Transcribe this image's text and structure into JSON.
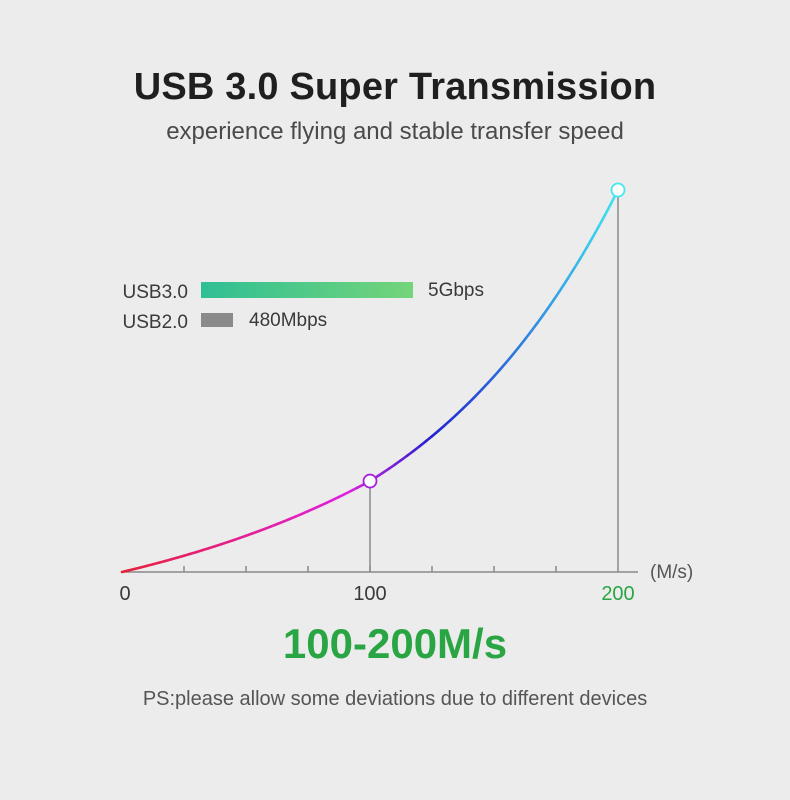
{
  "header": {
    "title": "USB 3.0 Super Transmission",
    "subtitle": "experience flying and stable transfer speed"
  },
  "legend": [
    {
      "label": "USB3.0",
      "value_label": "5Gbps",
      "value": 5000
    },
    {
      "label": "USB2.0",
      "value_label": "480Mbps",
      "value": 480
    }
  ],
  "range_label": "100-200M/s",
  "note": "PS:please allow some deviations due to different devices",
  "colors": {
    "background": "#ececec",
    "axis": "#8a8a8a",
    "usb3_bar_start": "#2fbf95",
    "usb3_bar_end": "#74d47a",
    "usb2_bar": "#8a8a8a",
    "curve_start": "#e8203a",
    "curve_mid1": "#e020e0",
    "curve_mid2": "#2020d0",
    "curve_end": "#40e8f0",
    "accent_green": "#2aa544"
  },
  "chart_data": {
    "type": "line",
    "xlabel": "(M/s)",
    "xlim": [
      0,
      200
    ],
    "x_ticks": [
      {
        "value": 0,
        "label": "0"
      },
      {
        "value": 100,
        "label": "100"
      },
      {
        "value": 200,
        "label": "200"
      }
    ],
    "minor_tick_step": 25,
    "series": [
      {
        "x": [
          0,
          25,
          50,
          75,
          100,
          125,
          150,
          175,
          200
        ],
        "y": [
          0,
          0.12,
          0.26,
          0.45,
          1.0,
          1.55,
          2.3,
          3.2,
          4.2
        ]
      }
    ],
    "markers": [
      {
        "x": 100,
        "y": 1.0
      },
      {
        "x": 200,
        "y": 4.2
      }
    ],
    "grid": false
  }
}
